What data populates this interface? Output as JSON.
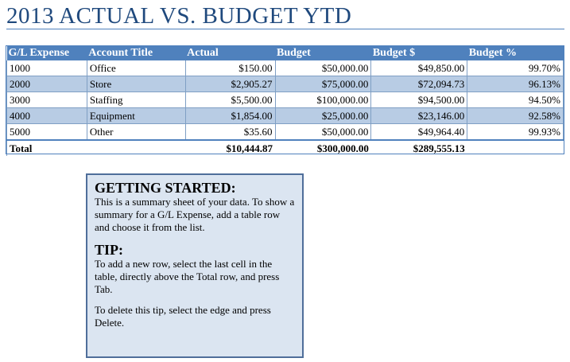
{
  "title": "2013 ACTUAL VS. BUDGET YTD",
  "table": {
    "headers": [
      "G/L Expense",
      "Account Title",
      "Actual",
      "Budget",
      "Budget $",
      "Budget %"
    ],
    "rows": [
      {
        "gl": "1000",
        "account": "Office",
        "actual": "$150.00",
        "budget": "$50,000.00",
        "budget_dollar": "$49,850.00",
        "budget_pct": "99.70%"
      },
      {
        "gl": "2000",
        "account": "Store",
        "actual": "$2,905.27",
        "budget": "$75,000.00",
        "budget_dollar": "$72,094.73",
        "budget_pct": "96.13%"
      },
      {
        "gl": "3000",
        "account": "Staffing",
        "actual": "$5,500.00",
        "budget": "$100,000.00",
        "budget_dollar": "$94,500.00",
        "budget_pct": "94.50%"
      },
      {
        "gl": "4000",
        "account": "Equipment",
        "actual": "$1,854.00",
        "budget": "$25,000.00",
        "budget_dollar": "$23,146.00",
        "budget_pct": "92.58%"
      },
      {
        "gl": "5000",
        "account": "Other",
        "actual": "$35.60",
        "budget": "$50,000.00",
        "budget_dollar": "$49,964.40",
        "budget_pct": "99.93%"
      }
    ],
    "total": {
      "label": "Total",
      "actual": "$10,444.87",
      "budget": "$300,000.00",
      "budget_dollar": "$289,555.13"
    }
  },
  "tip": {
    "heading1": "GETTING STARTED:",
    "text1": "This is a summary sheet of your data.  To show a summary for a G/L Expense, add a table row and choose it from the list.",
    "heading2": "TIP:",
    "text2": "To add a new row, select the last cell in the table, directly above the Total row, and press Tab.",
    "text3": "To delete this tip, select the edge and press Delete."
  },
  "colors": {
    "header_bg": "#4f81bd",
    "band_bg": "#b8cce4",
    "title": "#1f497d",
    "tip_bg": "#dbe5f1"
  }
}
